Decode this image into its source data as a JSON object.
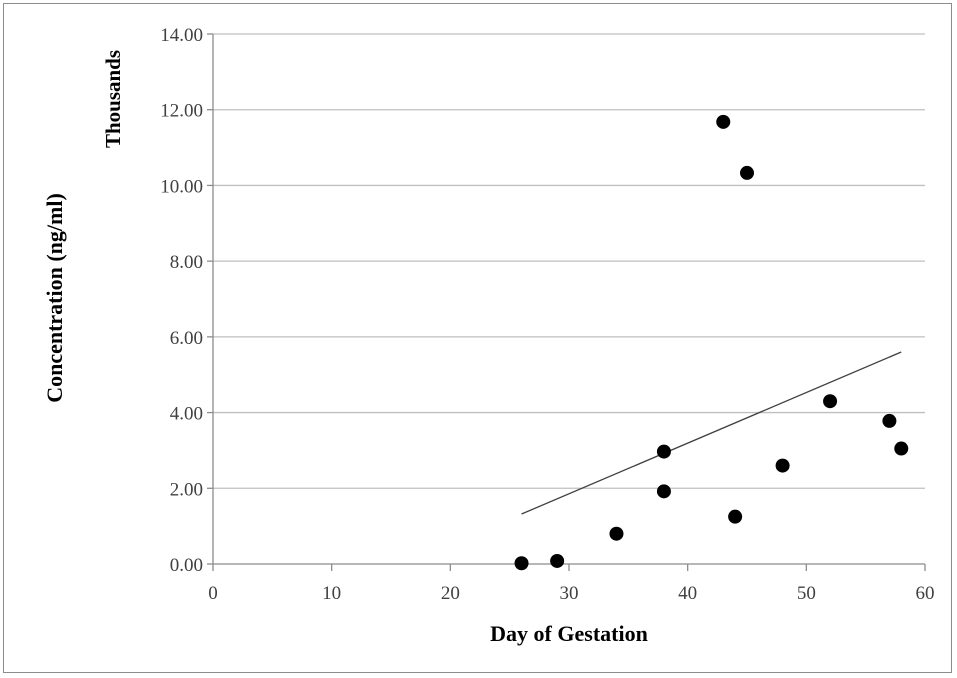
{
  "chart_data": {
    "type": "scatter",
    "title": "",
    "xlabel": "Day of Gestation",
    "ylabel": "Concentration (ng/ml)",
    "y_units_label": "Thousands",
    "xlim": [
      0,
      60
    ],
    "ylim": [
      0,
      14
    ],
    "x_ticks": [
      0,
      10,
      20,
      30,
      40,
      50,
      60
    ],
    "y_ticks": [
      0,
      2,
      4,
      6,
      8,
      10,
      12,
      14
    ],
    "x_tick_labels": [
      "0",
      "10",
      "20",
      "30",
      "40",
      "50",
      "60"
    ],
    "y_tick_labels": [
      "0.00",
      "2.00",
      "4.00",
      "6.00",
      "8.00",
      "10.00",
      "12.00",
      "14.00"
    ],
    "grid": "horizontal",
    "legend": "none",
    "points": [
      {
        "x": 26,
        "y": 0.02
      },
      {
        "x": 29,
        "y": 0.08
      },
      {
        "x": 34,
        "y": 0.8
      },
      {
        "x": 38,
        "y": 1.92
      },
      {
        "x": 38,
        "y": 2.97
      },
      {
        "x": 43,
        "y": 11.68
      },
      {
        "x": 44,
        "y": 1.25
      },
      {
        "x": 45,
        "y": 10.33
      },
      {
        "x": 48,
        "y": 2.6
      },
      {
        "x": 52,
        "y": 4.3
      },
      {
        "x": 57,
        "y": 3.78
      },
      {
        "x": 58,
        "y": 3.05
      }
    ],
    "trendline": {
      "type": "linear",
      "x_start": 26,
      "y_start": 1.32,
      "x_end": 58,
      "y_end": 5.6
    },
    "colors": {
      "marker": "#000000",
      "gridline": "#bfbfbf",
      "axis": "#8c8c8c",
      "trendline": "#404040"
    }
  }
}
